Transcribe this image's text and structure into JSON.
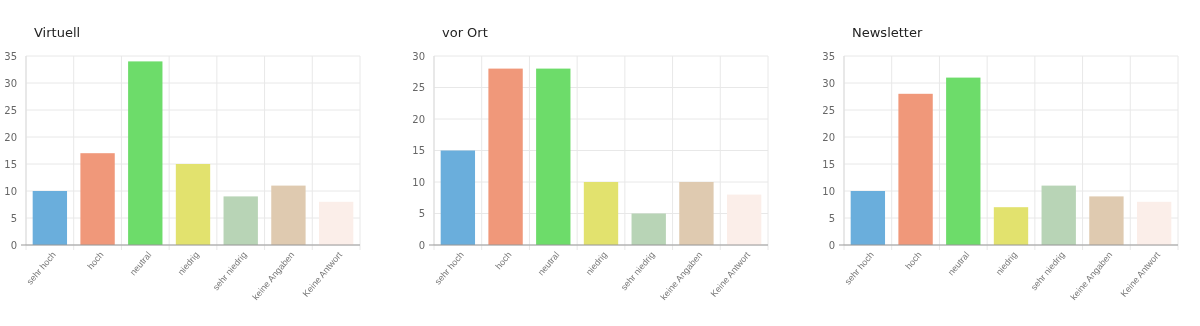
{
  "chart_data": [
    {
      "type": "bar",
      "title": "Virtuell",
      "categories": [
        "sehr hoch",
        "hoch",
        "neutral",
        "niedrig",
        "sehr niedrig",
        "keine Angaben",
        "Keine Antwort"
      ],
      "values": [
        10,
        17,
        34,
        15,
        9,
        11,
        8
      ],
      "colors": [
        "#6aaedc",
        "#f0987a",
        "#6ddc6a",
        "#e2e26e",
        "#b8d4b6",
        "#dfcab0",
        "#fbeee9"
      ],
      "ylim": [
        0,
        35
      ],
      "yticks": [
        0,
        5,
        10,
        15,
        20,
        25,
        30,
        35
      ],
      "grid": true
    },
    {
      "type": "bar",
      "title": "vor Ort",
      "categories": [
        "sehr hoch",
        "hoch",
        "neutral",
        "niedrig",
        "sehr niedrig",
        "keine Angaben",
        "Keine Antwort"
      ],
      "values": [
        15,
        28,
        28,
        10,
        5,
        10,
        8
      ],
      "colors": [
        "#6aaedc",
        "#f0987a",
        "#6ddc6a",
        "#e2e26e",
        "#b8d4b6",
        "#dfcab0",
        "#fbeee9"
      ],
      "ylim": [
        0,
        30
      ],
      "yticks": [
        0,
        5,
        10,
        15,
        20,
        25,
        30
      ],
      "grid": true
    },
    {
      "type": "bar",
      "title": "Newsletter",
      "categories": [
        "sehr hoch",
        "hoch",
        "neutral",
        "niedrig",
        "sehr niedrig",
        "keine Angaben",
        "Keine Antwort"
      ],
      "values": [
        10,
        28,
        31,
        7,
        11,
        9,
        8
      ],
      "colors": [
        "#6aaedc",
        "#f0987a",
        "#6ddc6a",
        "#e2e26e",
        "#b8d4b6",
        "#dfcab0",
        "#fbeee9"
      ],
      "ylim": [
        0,
        35
      ],
      "yticks": [
        0,
        5,
        10,
        15,
        20,
        25,
        30,
        35
      ],
      "grid": true
    }
  ]
}
